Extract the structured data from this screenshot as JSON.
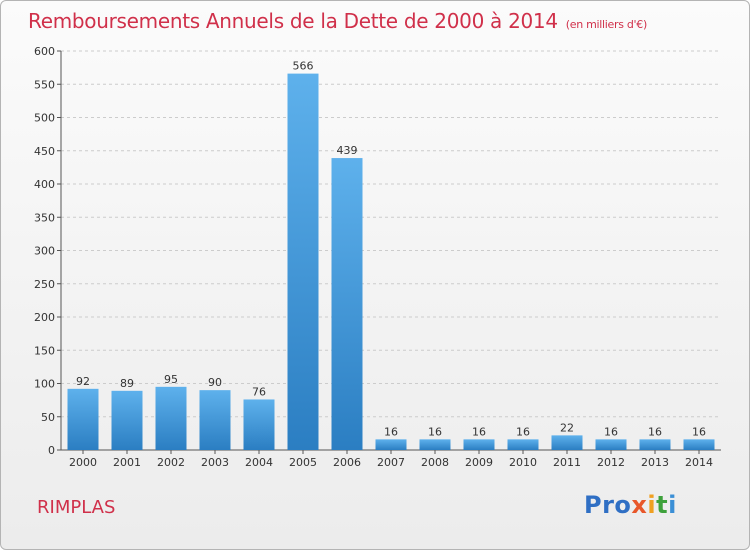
{
  "title": "Remboursements Annuels de la Dette de 2000 à 2014",
  "unit": "(en milliers d'€)",
  "commune": "RIMPLAS",
  "logo": {
    "p1": "Pro",
    "p2": "x",
    "p3": "i",
    "p4": "t",
    "p5": "i"
  },
  "colors": {
    "bar_light": "#5eb1ec",
    "bar_dark": "#2b7ec2",
    "title": "#d0304a",
    "grid": "#cccccc"
  },
  "chart_data": {
    "type": "bar",
    "title": "Remboursements Annuels de la Dette de 2000 à 2014",
    "categories": [
      "2000",
      "2001",
      "2002",
      "2003",
      "2004",
      "2005",
      "2006",
      "2007",
      "2008",
      "2009",
      "2010",
      "2011",
      "2012",
      "2013",
      "2014"
    ],
    "values": [
      92,
      89,
      95,
      90,
      76,
      566,
      439,
      16,
      16,
      16,
      16,
      22,
      16,
      16,
      16
    ],
    "ylim": [
      0,
      600
    ],
    "yticks": [
      0,
      50,
      100,
      150,
      200,
      250,
      300,
      350,
      400,
      450,
      500,
      550,
      600
    ],
    "grid": true
  }
}
